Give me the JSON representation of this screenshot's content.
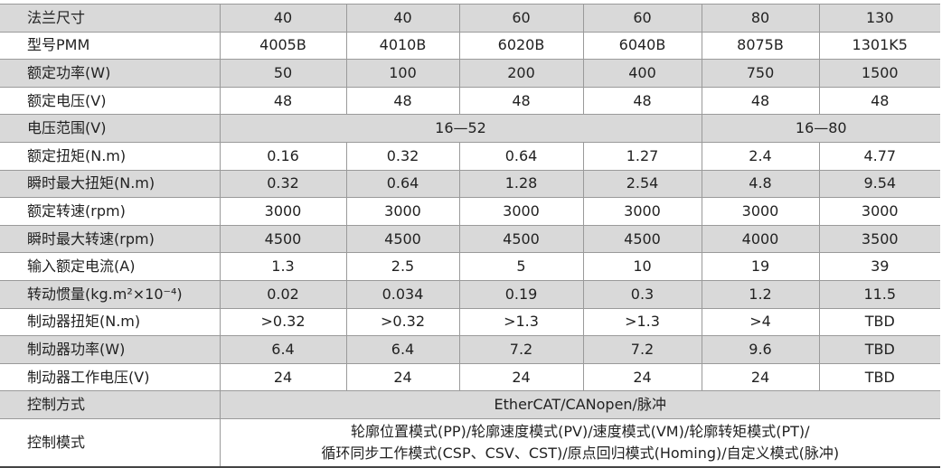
{
  "table": {
    "rows": [
      {
        "label": "法兰尺寸",
        "cells": [
          "40",
          "40",
          "60",
          "60",
          "80",
          "130"
        ]
      },
      {
        "label": "型号PMM",
        "cells": [
          "4005B",
          "4010B",
          "6020B",
          "6040B",
          "8075B",
          "1301K5"
        ]
      },
      {
        "label": "额定功率(W)",
        "cells": [
          "50",
          "100",
          "200",
          "400",
          "750",
          "1500"
        ]
      },
      {
        "label": "额定电压(V)",
        "cells": [
          "48",
          "48",
          "48",
          "48",
          "48",
          "48"
        ]
      },
      {
        "label": "电压范围(V)",
        "cells": [
          "16—52",
          "16—80"
        ]
      },
      {
        "label": "额定扭矩(N.m)",
        "cells": [
          "0.16",
          "0.32",
          "0.64",
          "1.27",
          "2.4",
          "4.77"
        ]
      },
      {
        "label": "瞬时最大扭矩(N.m)",
        "cells": [
          "0.32",
          "0.64",
          "1.28",
          "2.54",
          "4.8",
          "9.54"
        ]
      },
      {
        "label": "额定转速(rpm)",
        "cells": [
          "3000",
          "3000",
          "3000",
          "3000",
          "3000",
          "3000"
        ]
      },
      {
        "label": "瞬时最大转速(rpm)",
        "cells": [
          "4500",
          "4500",
          "4500",
          "4500",
          "4000",
          "3500"
        ]
      },
      {
        "label": "输入额定电流(A)",
        "cells": [
          "1.3",
          "2.5",
          "5",
          "10",
          "19",
          "39"
        ]
      },
      {
        "label": "转动惯量(kg.m²×10⁻⁴)",
        "cells": [
          "0.02",
          "0.034",
          "0.19",
          "0.3",
          "1.2",
          "11.5"
        ]
      },
      {
        "label": "制动器扭矩(N.m)",
        "cells": [
          ">0.32",
          ">0.32",
          ">1.3",
          ">1.3",
          ">4",
          "TBD"
        ]
      },
      {
        "label": "制动器功率(W)",
        "cells": [
          "6.4",
          "6.4",
          "7.2",
          "7.2",
          "9.6",
          "TBD"
        ]
      },
      {
        "label": "制动器工作电压(V)",
        "cells": [
          "24",
          "24",
          "24",
          "24",
          "24",
          "TBD"
        ]
      },
      {
        "label": "控制方式",
        "cells": [
          "EtherCAT/CANopen/脉冲"
        ]
      },
      {
        "label": "控制模式",
        "cells": [
          "轮廓位置模式(PP)/轮廓速度模式(PV)/速度模式(VM)/轮廓转矩模式(PT)/\n循环同步工作模式(CSP、CSV、CST)/原点回归模式(Homing)/自定义模式(脉冲)"
        ]
      }
    ]
  }
}
